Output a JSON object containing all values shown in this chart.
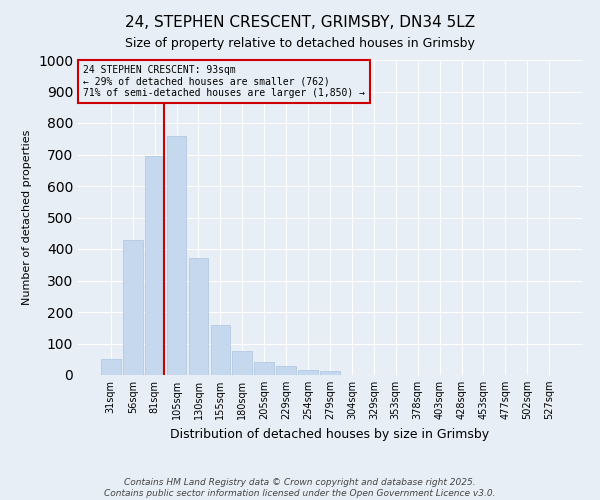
{
  "title": "24, STEPHEN CRESCENT, GRIMSBY, DN34 5LZ",
  "subtitle": "Size of property relative to detached houses in Grimsby",
  "xlabel": "Distribution of detached houses by size in Grimsby",
  "ylabel": "Number of detached properties",
  "categories": [
    "31sqm",
    "56sqm",
    "81sqm",
    "105sqm",
    "130sqm",
    "155sqm",
    "180sqm",
    "205sqm",
    "229sqm",
    "254sqm",
    "279sqm",
    "304sqm",
    "329sqm",
    "353sqm",
    "378sqm",
    "403sqm",
    "428sqm",
    "453sqm",
    "477sqm",
    "502sqm",
    "527sqm"
  ],
  "values": [
    50,
    430,
    695,
    760,
    370,
    160,
    75,
    40,
    30,
    15,
    12,
    0,
    0,
    0,
    0,
    0,
    0,
    0,
    0,
    0,
    0
  ],
  "bar_color": "#c5d8ee",
  "bar_edgecolor": "#aac4e0",
  "ylim": [
    0,
    1000
  ],
  "yticks": [
    0,
    100,
    200,
    300,
    400,
    500,
    600,
    700,
    800,
    900,
    1000
  ],
  "property_line_index": 2,
  "property_line_color": "#cc0000",
  "annotation_line1": "24 STEPHEN CRESCENT: 93sqm",
  "annotation_line2": "← 29% of detached houses are smaller (762)",
  "annotation_line3": "71% of semi-detached houses are larger (1,850) →",
  "annotation_box_color": "#cc0000",
  "background_color": "#e8eef5",
  "grid_color": "#ffffff",
  "footer_line1": "Contains HM Land Registry data © Crown copyright and database right 2025.",
  "footer_line2": "Contains public sector information licensed under the Open Government Licence v3.0.",
  "title_fontsize": 11,
  "subtitle_fontsize": 9,
  "xlabel_fontsize": 9,
  "ylabel_fontsize": 8,
  "tick_fontsize": 7,
  "annotation_fontsize": 7,
  "footer_fontsize": 6.5
}
